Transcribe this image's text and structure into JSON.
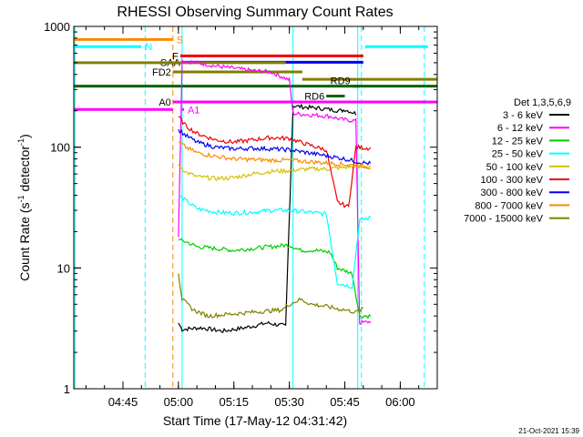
{
  "chart_data": {
    "type": "line",
    "title": "RHESSI Observing Summary Count Rates",
    "xlabel": "Start Time (17-May-12 04:31:42)",
    "ylabel": "Count Rate (s",
    "ylabel_sup1": "-1",
    "ylabel_mid": " detector",
    "ylabel_sup2": "-1",
    "ylabel_end": ")",
    "footer_date": "21-Oct-2021 15:39",
    "y_scale": "log",
    "ylim": [
      1,
      1000
    ],
    "xlim": [
      "04:31:42",
      "06:10:00"
    ],
    "x_ticks": [
      "04:45",
      "05:00",
      "05:15",
      "05:30",
      "05:45",
      "06:00"
    ],
    "y_ticks": [
      "1",
      "10",
      "100",
      "1000"
    ],
    "legend": {
      "header": "Det 1,3,5,6,9",
      "placement": "right",
      "entries": [
        {
          "label": "3 - 6 keV",
          "color": "#000000"
        },
        {
          "label": "6 - 12 keV",
          "color": "#ff00ff"
        },
        {
          "label": "12 - 25 keV",
          "color": "#00cc00"
        },
        {
          "label": "25 - 50 keV",
          "color": "#00ffff"
        },
        {
          "label": "50 - 100 keV",
          "color": "#d4c000"
        },
        {
          "label": "100 - 300 keV",
          "color": "#ee0000"
        },
        {
          "label": "300 - 800 keV",
          "color": "#0000ee"
        },
        {
          "label": "800 - 7000 keV",
          "color": "#ff8800"
        },
        {
          "label": "7000 - 15000 keV",
          "color": "#808000"
        }
      ]
    },
    "series": [
      {
        "name": "3 - 6 keV",
        "color": "#000000",
        "points": [
          [
            "05:00",
            3.5
          ],
          [
            "05:01",
            3.1
          ],
          [
            "05:06",
            3.2
          ],
          [
            "05:12",
            3.0
          ],
          [
            "05:18",
            3.2
          ],
          [
            "05:24",
            3.5
          ],
          [
            "05:29",
            3.3
          ],
          [
            "05:31",
            220
          ],
          [
            "05:34",
            215
          ],
          [
            "05:38",
            210
          ],
          [
            "05:41",
            205
          ],
          [
            "05:44",
            200
          ],
          [
            "05:45",
            205
          ],
          [
            "05:48",
            190
          ]
        ]
      },
      {
        "name": "6 - 12 keV",
        "color": "#ff00ff",
        "points": [
          [
            "05:00",
            18
          ],
          [
            "05:01",
            520
          ],
          [
            "05:05",
            500
          ],
          [
            "05:10",
            470
          ],
          [
            "05:15",
            450
          ],
          [
            "05:20",
            430
          ],
          [
            "05:25",
            420
          ],
          [
            "05:30",
            360
          ],
          [
            "05:31",
            190
          ],
          [
            "05:36",
            185
          ],
          [
            "05:41",
            180
          ],
          [
            "05:44",
            170
          ],
          [
            "05:48",
            165
          ],
          [
            "05:49",
            3.5
          ],
          [
            "05:52",
            3.6
          ]
        ]
      },
      {
        "name": "12 - 25 keV",
        "color": "#00cc00",
        "points": [
          [
            "05:00",
            17
          ],
          [
            "05:02",
            16.5
          ],
          [
            "05:05",
            15
          ],
          [
            "05:10",
            14.5
          ],
          [
            "05:15",
            14
          ],
          [
            "05:20",
            14.5
          ],
          [
            "05:25",
            15
          ],
          [
            "05:30",
            15.5
          ],
          [
            "05:33",
            14
          ],
          [
            "05:37",
            14
          ],
          [
            "05:41",
            13.5
          ],
          [
            "05:43",
            10
          ],
          [
            "05:47",
            9
          ],
          [
            "05:49",
            4.0
          ],
          [
            "05:52",
            4.0
          ]
        ]
      },
      {
        "name": "25 - 50 keV",
        "color": "#00ffff",
        "points": [
          [
            "05:00",
            40
          ],
          [
            "05:02",
            36
          ],
          [
            "05:05",
            31
          ],
          [
            "05:10",
            29
          ],
          [
            "05:15",
            28.5
          ],
          [
            "05:20",
            29
          ],
          [
            "05:25",
            30
          ],
          [
            "05:30",
            30
          ],
          [
            "05:35",
            29
          ],
          [
            "05:40",
            28
          ],
          [
            "05:43",
            7.5
          ],
          [
            "05:47",
            7.0
          ],
          [
            "05:49",
            25
          ],
          [
            "05:52",
            26
          ]
        ]
      },
      {
        "name": "50 - 100 keV",
        "color": "#d4c000",
        "points": [
          [
            "05:00",
            72
          ],
          [
            "05:02",
            62
          ],
          [
            "05:05",
            57
          ],
          [
            "05:10",
            55
          ],
          [
            "05:15",
            56
          ],
          [
            "05:20",
            60
          ],
          [
            "05:25",
            63
          ],
          [
            "05:30",
            64
          ],
          [
            "05:35",
            66
          ],
          [
            "05:40",
            66
          ],
          [
            "05:45",
            68
          ],
          [
            "05:49",
            70
          ],
          [
            "05:52",
            68
          ]
        ]
      },
      {
        "name": "100 - 300 keV",
        "color": "#ee0000",
        "points": [
          [
            "05:00",
            180
          ],
          [
            "05:02",
            150
          ],
          [
            "05:05",
            130
          ],
          [
            "05:10",
            115
          ],
          [
            "05:15",
            110
          ],
          [
            "05:20",
            115
          ],
          [
            "05:25",
            120
          ],
          [
            "05:30",
            118
          ],
          [
            "05:35",
            105
          ],
          [
            "05:40",
            95
          ],
          [
            "05:43",
            35
          ],
          [
            "05:46",
            32
          ],
          [
            "05:48",
            100
          ],
          [
            "05:52",
            98
          ]
        ]
      },
      {
        "name": "300 - 800 keV",
        "color": "#0000ee",
        "points": [
          [
            "05:00",
            140
          ],
          [
            "05:02",
            125
          ],
          [
            "05:05",
            110
          ],
          [
            "05:10",
            100
          ],
          [
            "05:15",
            97
          ],
          [
            "05:20",
            98
          ],
          [
            "05:25",
            97
          ],
          [
            "05:30",
            95
          ],
          [
            "05:35",
            90
          ],
          [
            "05:40",
            85
          ],
          [
            "05:45",
            80
          ],
          [
            "05:49",
            75
          ],
          [
            "05:52",
            73
          ]
        ]
      },
      {
        "name": "800 - 7000 keV",
        "color": "#ff8800",
        "points": [
          [
            "05:00",
            110
          ],
          [
            "05:02",
            100
          ],
          [
            "05:05",
            90
          ],
          [
            "05:10",
            84
          ],
          [
            "05:15",
            80
          ],
          [
            "05:20",
            79
          ],
          [
            "05:25",
            78
          ],
          [
            "05:30",
            78
          ],
          [
            "05:35",
            76
          ],
          [
            "05:40",
            74
          ],
          [
            "05:45",
            72
          ],
          [
            "05:49",
            70
          ],
          [
            "05:52",
            68
          ]
        ]
      },
      {
        "name": "7000 - 15000 keV",
        "color": "#808000",
        "points": [
          [
            "05:00",
            9
          ],
          [
            "05:01",
            5.5
          ],
          [
            "05:04",
            4.5
          ],
          [
            "05:08",
            4.0
          ],
          [
            "05:12",
            4.1
          ],
          [
            "05:16",
            4.2
          ],
          [
            "05:20",
            4.3
          ],
          [
            "05:24",
            4.4
          ],
          [
            "05:28",
            4.5
          ],
          [
            "05:30",
            5.0
          ],
          [
            "05:33",
            5.5
          ],
          [
            "05:36",
            5.0
          ],
          [
            "05:40",
            4.8
          ],
          [
            "05:43",
            4.6
          ],
          [
            "05:45",
            4.5
          ],
          [
            "05:48",
            4.3
          ],
          [
            "05:50",
            4.6
          ]
        ]
      }
    ],
    "flag_bars": [
      {
        "label": "S",
        "color": "#ff8800",
        "start": "04:31:42",
        "end": "04:58:30",
        "value": 780,
        "label_side": "right"
      },
      {
        "label": "N",
        "color": "#00ffff",
        "start": "04:31:42",
        "end": "04:50:00",
        "value": 680,
        "label_side": "right"
      },
      {
        "label": "N",
        "color": "#00ffff",
        "start": "05:50:30",
        "end": "06:07:30",
        "value": 680,
        "label_side": "none"
      },
      {
        "label": "F",
        "color": "#ee0000",
        "start": "05:00:30",
        "end": "05:50:00",
        "value": 570,
        "label_side": "left"
      },
      {
        "label": "SAA",
        "color": "#0000ee",
        "start": "05:01:00",
        "end": "05:50:00",
        "value": 505,
        "label_side": "left"
      },
      {
        "label": "FD2",
        "color": "#808000",
        "start": "04:31:42",
        "end": "05:29:00",
        "value": 500,
        "label_side": "none"
      },
      {
        "label": "FD2",
        "color": "#808000",
        "start": "04:58:30",
        "end": "05:33:30",
        "value": 420,
        "label_side": "left"
      },
      {
        "label": "FD2",
        "color": "#808000",
        "start": "05:33:30",
        "end": "06:10:00",
        "value": 365,
        "label_side": "none"
      },
      {
        "label": "RD6",
        "color": "#006600",
        "start": "04:31:42",
        "end": "06:10:00",
        "value": 320,
        "label_side": "none"
      },
      {
        "label": "RD6",
        "color": "#006600",
        "start": "05:40:00",
        "end": "05:45:00",
        "value": 265,
        "label_side": "left"
      },
      {
        "label": "RD9",
        "color": "#006600",
        "start": "05:47:00",
        "end": "05:49:00",
        "value": 320,
        "label_side": "left_above"
      },
      {
        "label": "A0",
        "color": "#ff00ff",
        "start": "04:58:30",
        "end": "06:10:00",
        "value": 237,
        "label_side": "left"
      },
      {
        "label": "A0",
        "color": "#ff00ff",
        "start": "04:31:42",
        "end": "04:58:30",
        "value": 205,
        "label_side": "none"
      },
      {
        "label": "A1",
        "color": "#ff00ff",
        "start": "05:01:00",
        "end": "05:01:30",
        "value": 205,
        "label_side": "right"
      }
    ],
    "vlines": [
      {
        "time": "04:32:00",
        "color": "#00ffff",
        "style": "solid"
      },
      {
        "time": "04:51:00",
        "color": "#00ffff",
        "style": "dashed"
      },
      {
        "time": "04:58:30",
        "color": "#ff8800",
        "style": "dashed"
      },
      {
        "time": "05:01:00",
        "color": "#00ffff",
        "style": "solid"
      },
      {
        "time": "05:31:00",
        "color": "#00ffff",
        "style": "solid"
      },
      {
        "time": "05:48:30",
        "color": "#00ffff",
        "style": "solid"
      },
      {
        "time": "05:49:30",
        "color": "#00ffff",
        "style": "dashed"
      },
      {
        "time": "06:06:30",
        "color": "#00ffff",
        "style": "dashed"
      }
    ]
  }
}
